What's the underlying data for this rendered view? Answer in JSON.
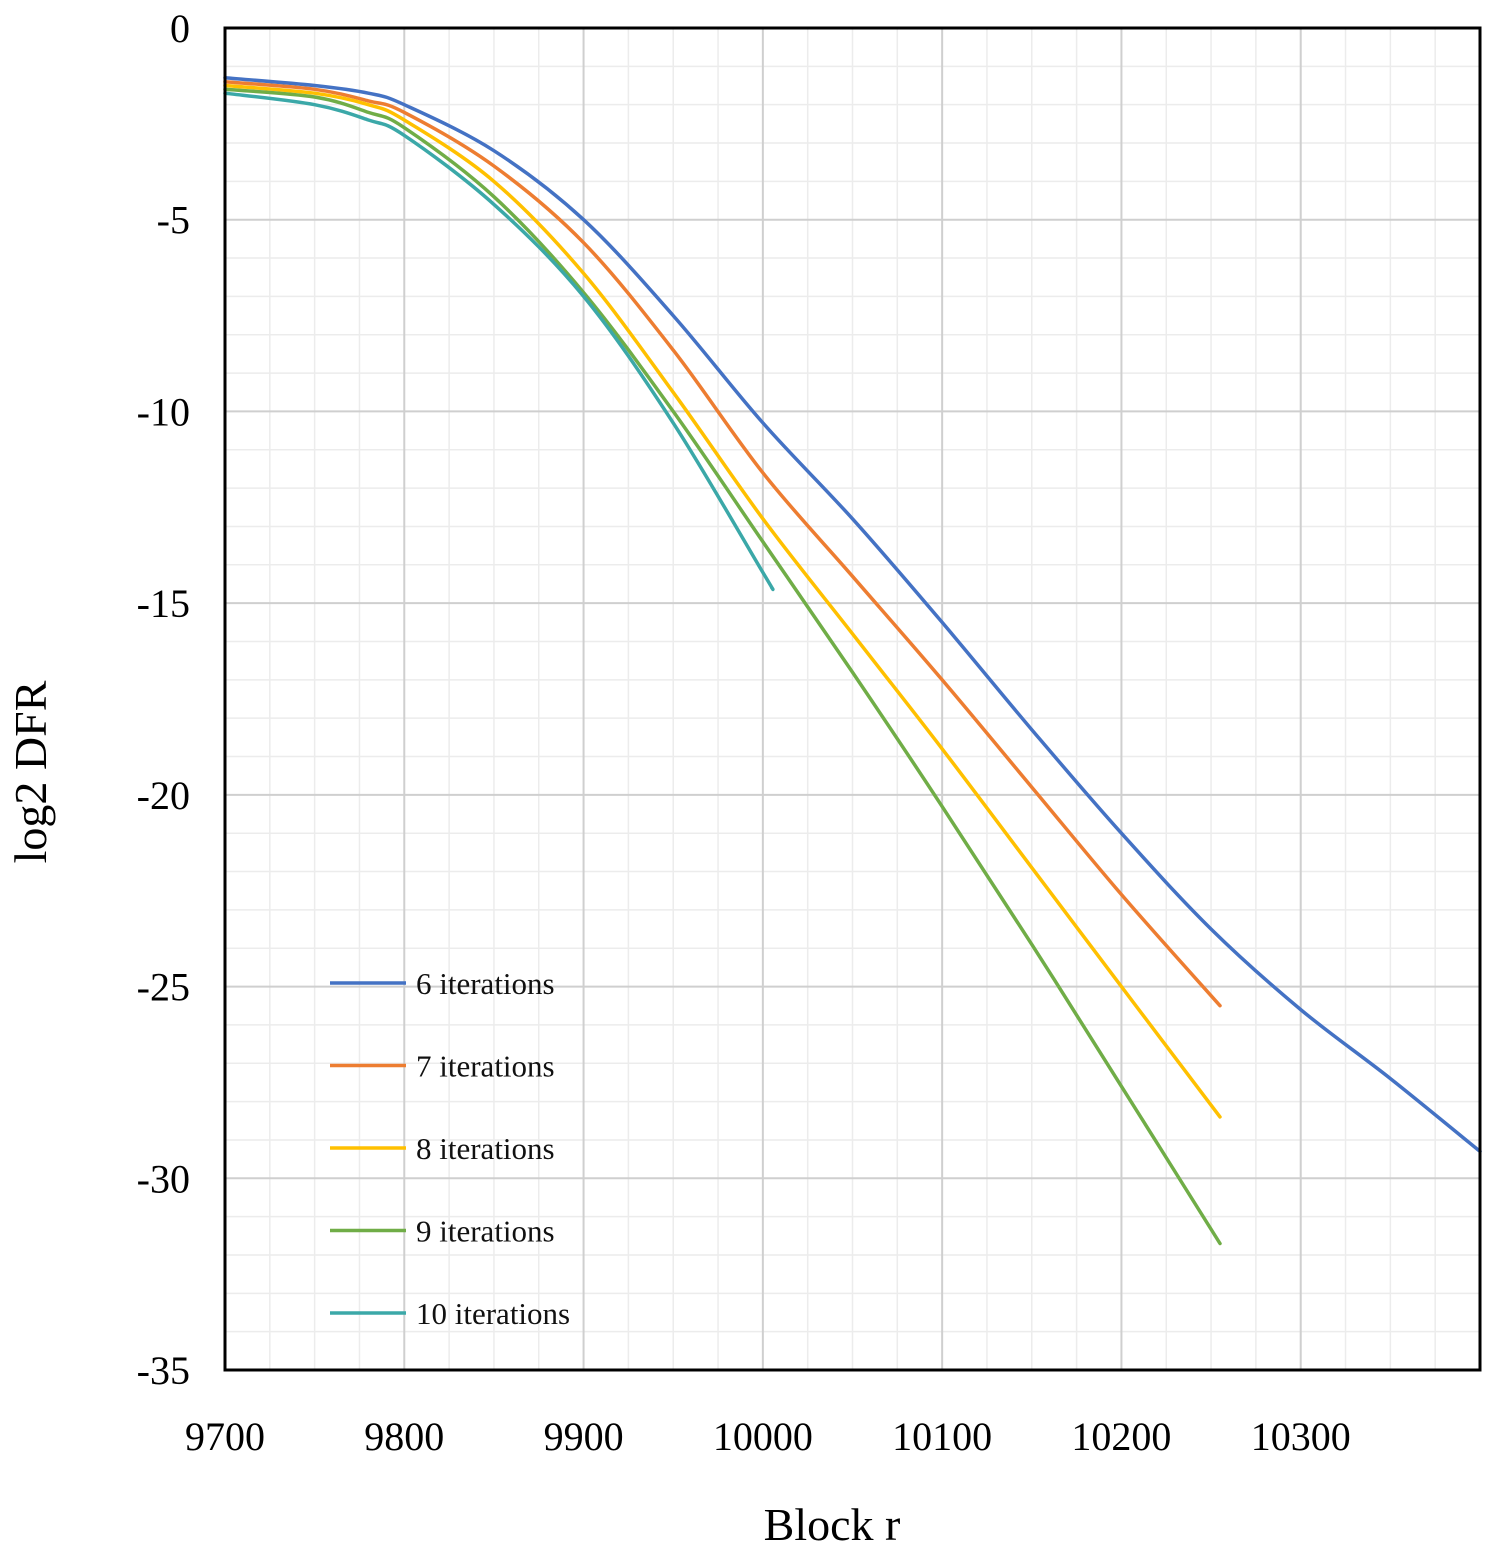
{
  "chart_data": {
    "type": "line",
    "title": "",
    "xlabel": "Block r",
    "ylabel": "log2 DFR",
    "xlim": [
      9700,
      10400
    ],
    "ylim": [
      -35,
      0
    ],
    "x_ticks": [
      9700,
      9800,
      9900,
      10000,
      10100,
      10200,
      10300
    ],
    "x_tick_labels": [
      "9700",
      "9800",
      "9900",
      "10000",
      "10100",
      "10200",
      "10300"
    ],
    "y_ticks": [
      0,
      -5,
      -10,
      -15,
      -20,
      -25,
      -30,
      -35
    ],
    "y_tick_labels": [
      "0",
      "-5",
      "-10",
      "-15",
      "-20",
      "-25",
      "-30",
      "-35"
    ],
    "grid": true,
    "legend_position": "lower-left",
    "series": [
      {
        "name": "6 iterations",
        "color": "#4472C4",
        "x": [
          9700,
          9750,
          9780,
          9800,
          9850,
          9900,
          9950,
          10000,
          10050,
          10100,
          10150,
          10200,
          10250,
          10300,
          10350,
          10400
        ],
        "y": [
          -1.3,
          -1.5,
          -1.7,
          -2.0,
          -3.2,
          -5.0,
          -7.5,
          -10.3,
          -12.8,
          -15.5,
          -18.3,
          -21.0,
          -23.5,
          -25.6,
          -27.4,
          -29.3
        ]
      },
      {
        "name": "7 iterations",
        "color": "#ED7D31",
        "x": [
          9700,
          9750,
          9780,
          9800,
          9850,
          9900,
          9950,
          10000,
          10050,
          10100,
          10150,
          10200,
          10255
        ],
        "y": [
          -1.4,
          -1.6,
          -1.9,
          -2.2,
          -3.6,
          -5.6,
          -8.4,
          -11.6,
          -14.3,
          -17.0,
          -19.8,
          -22.6,
          -25.5
        ]
      },
      {
        "name": "8 iterations",
        "color": "#FFC000",
        "x": [
          9700,
          9750,
          9780,
          9800,
          9850,
          9900,
          9950,
          10000,
          10050,
          10100,
          10150,
          10200,
          10255
        ],
        "y": [
          -1.5,
          -1.7,
          -2.0,
          -2.4,
          -4.0,
          -6.4,
          -9.5,
          -12.8,
          -15.8,
          -18.8,
          -21.9,
          -25.0,
          -28.4
        ]
      },
      {
        "name": "9 iterations",
        "color": "#70AD47",
        "x": [
          9700,
          9750,
          9780,
          9800,
          9850,
          9900,
          9950,
          10000,
          10050,
          10100,
          10150,
          10200,
          10255
        ],
        "y": [
          -1.6,
          -1.8,
          -2.2,
          -2.6,
          -4.4,
          -6.9,
          -10.0,
          -13.4,
          -16.8,
          -20.3,
          -23.9,
          -27.6,
          -31.7
        ]
      },
      {
        "name": "10 iterations",
        "color": "#3BA8A8",
        "x": [
          9700,
          9750,
          9780,
          9800,
          9850,
          9900,
          9950,
          10000,
          10005
        ],
        "y": [
          -1.7,
          -2.0,
          -2.4,
          -2.8,
          -4.6,
          -7.0,
          -10.3,
          -14.2,
          -14.6
        ]
      }
    ]
  }
}
